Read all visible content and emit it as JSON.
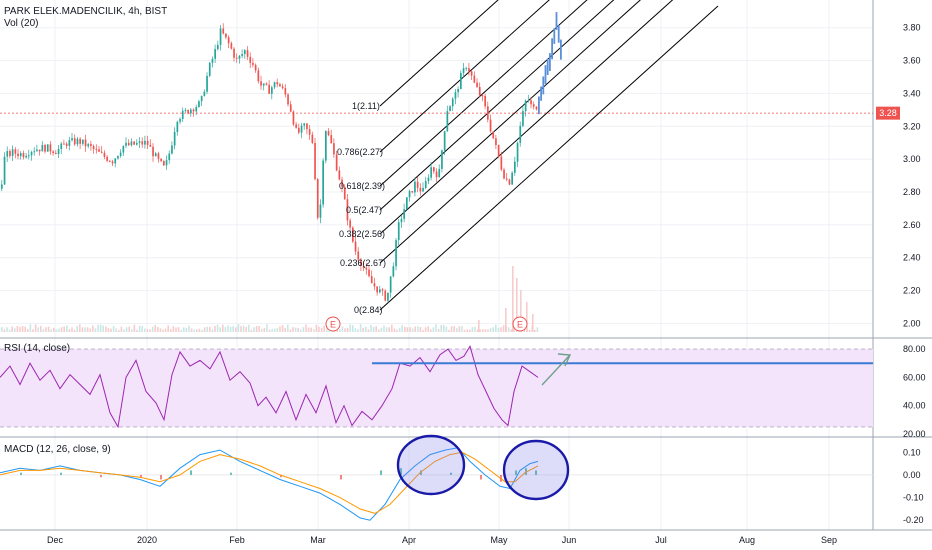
{
  "header": {
    "symbol": "PARK ELEK.MADENCILIK, 4h, BIST",
    "volume_label": "Vol (20)"
  },
  "price_pane": {
    "y_ticks": [
      "3.80",
      "3.60",
      "3.40",
      "3.20",
      "3.00",
      "2.80",
      "2.60",
      "2.40",
      "2.20",
      "2.00"
    ],
    "current_price": "3.28",
    "earnings_marker": "E"
  },
  "rsi_pane": {
    "label": "RSI (14, close)",
    "y_ticks": [
      "80.00",
      "60.00",
      "40.00",
      "20.00"
    ]
  },
  "macd_pane": {
    "label": "MACD (12, 26, close, 9)",
    "y_ticks": [
      "0.10",
      "0.00",
      "-0.10",
      "-0.20"
    ]
  },
  "time_axis": {
    "labels": [
      "Dec",
      "2020",
      "Feb",
      "Mar",
      "Apr",
      "May",
      "Jun",
      "Jul",
      "Aug",
      "Sep"
    ]
  },
  "fib_levels": [
    "1(2.11)",
    "0.786(2.27)",
    "0.618(2.39)",
    "0.5(2.47)",
    "0.382(2.56)",
    "0.236(2.67)",
    "0(2.84)"
  ],
  "colors": {
    "up": "#26a69a",
    "down": "#ef5350",
    "projection": "#5b8fd9",
    "rsi_line": "#9c27b0",
    "rsi_band": "#f3e3fb",
    "macd_line": "#2196f3",
    "signal_line": "#ff9800",
    "annotation": "#1a1aa8",
    "horizontal": "#3a7bd5",
    "arrow": "#6fa08c"
  },
  "chart_data": {
    "type": "candlestick",
    "x_labels": [
      "Dec",
      "2020",
      "Feb",
      "Mar",
      "Apr",
      "May",
      "Jun",
      "Jul",
      "Aug",
      "Sep"
    ],
    "price_range": [
      1.96,
      3.92
    ],
    "price_path": [
      [
        0,
        2.82
      ],
      [
        4,
        3.02
      ],
      [
        12,
        3.04
      ],
      [
        22,
        3.03
      ],
      [
        32,
        3.06
      ],
      [
        44,
        3.07
      ],
      [
        56,
        3.05
      ],
      [
        66,
        3.1
      ],
      [
        78,
        3.11
      ],
      [
        90,
        3.07
      ],
      [
        102,
        3.02
      ],
      [
        112,
        2.99
      ],
      [
        122,
        3.08
      ],
      [
        134,
        3.09
      ],
      [
        146,
        3.1
      ],
      [
        156,
        3.0
      ],
      [
        164,
        2.94
      ],
      [
        170,
        3.07
      ],
      [
        176,
        3.25
      ],
      [
        188,
        3.3
      ],
      [
        200,
        3.34
      ],
      [
        208,
        3.55
      ],
      [
        214,
        3.65
      ],
      [
        220,
        3.78
      ],
      [
        228,
        3.7
      ],
      [
        236,
        3.6
      ],
      [
        244,
        3.66
      ],
      [
        252,
        3.58
      ],
      [
        260,
        3.45
      ],
      [
        268,
        3.42
      ],
      [
        276,
        3.47
      ],
      [
        284,
        3.4
      ],
      [
        290,
        3.3
      ],
      [
        296,
        3.15
      ],
      [
        304,
        3.2
      ],
      [
        312,
        3.1
      ],
      [
        318,
        2.55
      ],
      [
        324,
        3.2
      ],
      [
        330,
        3.1
      ],
      [
        336,
        2.95
      ],
      [
        342,
        2.8
      ],
      [
        348,
        2.6
      ],
      [
        354,
        2.45
      ],
      [
        362,
        2.35
      ],
      [
        370,
        2.25
      ],
      [
        378,
        2.2
      ],
      [
        386,
        2.15
      ],
      [
        392,
        2.35
      ],
      [
        398,
        2.6
      ],
      [
        406,
        2.75
      ],
      [
        414,
        2.85
      ],
      [
        422,
        2.8
      ],
      [
        430,
        2.95
      ],
      [
        438,
        2.9
      ],
      [
        446,
        3.3
      ],
      [
        454,
        3.38
      ],
      [
        460,
        3.5
      ],
      [
        466,
        3.58
      ],
      [
        474,
        3.45
      ],
      [
        482,
        3.36
      ],
      [
        490,
        3.18
      ],
      [
        496,
        3.05
      ],
      [
        502,
        2.92
      ],
      [
        508,
        2.85
      ],
      [
        514,
        3.0
      ],
      [
        520,
        3.22
      ],
      [
        526,
        3.38
      ],
      [
        532,
        3.3
      ],
      [
        538,
        3.34
      ]
    ],
    "projection_path": [
      [
        538,
        3.34
      ],
      [
        544,
        3.5
      ],
      [
        550,
        3.62
      ],
      [
        556,
        3.86
      ],
      [
        560,
        3.66
      ]
    ],
    "volume_spikes": [
      [
        478,
        0.02
      ],
      [
        505,
        0.04
      ],
      [
        512,
        0.11
      ],
      [
        516,
        0.09
      ],
      [
        520,
        0.07
      ],
      [
        526,
        0.05
      ],
      [
        532,
        0.03
      ]
    ],
    "current_price": 3.28,
    "rsi": {
      "range": [
        20,
        85
      ],
      "levels": [
        80,
        60,
        40,
        20
      ],
      "overbought": 80,
      "oversold": 25,
      "horizontal_line": 70,
      "series": [
        [
          0,
          60
        ],
        [
          10,
          68
        ],
        [
          20,
          55
        ],
        [
          30,
          70
        ],
        [
          40,
          58
        ],
        [
          50,
          65
        ],
        [
          60,
          52
        ],
        [
          70,
          62
        ],
        [
          80,
          55
        ],
        [
          90,
          48
        ],
        [
          100,
          62
        ],
        [
          110,
          35
        ],
        [
          118,
          25
        ],
        [
          126,
          60
        ],
        [
          136,
          72
        ],
        [
          146,
          50
        ],
        [
          156,
          42
        ],
        [
          164,
          30
        ],
        [
          172,
          62
        ],
        [
          180,
          78
        ],
        [
          190,
          68
        ],
        [
          200,
          72
        ],
        [
          210,
          66
        ],
        [
          220,
          78
        ],
        [
          230,
          58
        ],
        [
          240,
          64
        ],
        [
          250,
          56
        ],
        [
          258,
          40
        ],
        [
          266,
          46
        ],
        [
          276,
          35
        ],
        [
          286,
          50
        ],
        [
          296,
          30
        ],
        [
          306,
          48
        ],
        [
          316,
          35
        ],
        [
          326,
          54
        ],
        [
          336,
          28
        ],
        [
          344,
          40
        ],
        [
          352,
          26
        ],
        [
          362,
          36
        ],
        [
          372,
          30
        ],
        [
          382,
          40
        ],
        [
          392,
          52
        ],
        [
          400,
          70
        ],
        [
          410,
          68
        ],
        [
          420,
          74
        ],
        [
          430,
          64
        ],
        [
          440,
          76
        ],
        [
          448,
          80
        ],
        [
          456,
          72
        ],
        [
          464,
          75
        ],
        [
          470,
          82
        ],
        [
          478,
          62
        ],
        [
          486,
          50
        ],
        [
          494,
          38
        ],
        [
          502,
          30
        ],
        [
          508,
          26
        ],
        [
          514,
          50
        ],
        [
          522,
          68
        ],
        [
          530,
          64
        ],
        [
          538,
          60
        ]
      ],
      "arrow": [
        [
          542,
          385
        ],
        [
          570,
          355
        ]
      ]
    },
    "macd": {
      "range": [
        -0.23,
        0.15
      ],
      "levels": [
        0.1,
        0.0,
        -0.1,
        -0.2
      ],
      "macd_series": [
        [
          0,
          0.01
        ],
        [
          20,
          0.03
        ],
        [
          40,
          0.02
        ],
        [
          60,
          0.04
        ],
        [
          80,
          0.02
        ],
        [
          100,
          0.01
        ],
        [
          120,
          0.0
        ],
        [
          140,
          -0.02
        ],
        [
          160,
          -0.05
        ],
        [
          180,
          0.03
        ],
        [
          200,
          0.09
        ],
        [
          220,
          0.11
        ],
        [
          240,
          0.06
        ],
        [
          260,
          0.02
        ],
        [
          280,
          -0.02
        ],
        [
          300,
          -0.05
        ],
        [
          320,
          -0.08
        ],
        [
          340,
          -0.13
        ],
        [
          360,
          -0.19
        ],
        [
          370,
          -0.2
        ],
        [
          385,
          -0.13
        ],
        [
          400,
          -0.02
        ],
        [
          415,
          0.04
        ],
        [
          430,
          0.09
        ],
        [
          445,
          0.11
        ],
        [
          458,
          0.12
        ],
        [
          470,
          0.06
        ],
        [
          485,
          0.0
        ],
        [
          500,
          -0.05
        ],
        [
          510,
          -0.06
        ],
        [
          520,
          0.02
        ],
        [
          530,
          0.05
        ],
        [
          538,
          0.06
        ]
      ],
      "signal_series": [
        [
          0,
          0.0
        ],
        [
          20,
          0.02
        ],
        [
          40,
          0.02
        ],
        [
          60,
          0.03
        ],
        [
          80,
          0.02
        ],
        [
          100,
          0.01
        ],
        [
          120,
          0.0
        ],
        [
          140,
          -0.01
        ],
        [
          160,
          -0.03
        ],
        [
          180,
          0.0
        ],
        [
          200,
          0.06
        ],
        [
          220,
          0.09
        ],
        [
          240,
          0.07
        ],
        [
          260,
          0.04
        ],
        [
          280,
          0.0
        ],
        [
          300,
          -0.03
        ],
        [
          320,
          -0.06
        ],
        [
          340,
          -0.1
        ],
        [
          360,
          -0.15
        ],
        [
          375,
          -0.17
        ],
        [
          390,
          -0.13
        ],
        [
          405,
          -0.06
        ],
        [
          420,
          0.01
        ],
        [
          435,
          0.06
        ],
        [
          450,
          0.09
        ],
        [
          462,
          0.1
        ],
        [
          475,
          0.07
        ],
        [
          490,
          0.02
        ],
        [
          505,
          -0.03
        ],
        [
          515,
          -0.03
        ],
        [
          525,
          0.01
        ],
        [
          538,
          0.04
        ]
      ],
      "histogram": [
        [
          20,
          0.01
        ],
        [
          60,
          0.01
        ],
        [
          100,
          -0.01
        ],
        [
          140,
          -0.01
        ],
        [
          160,
          -0.02
        ],
        [
          190,
          0.02
        ],
        [
          230,
          0.01
        ],
        [
          280,
          -0.01
        ],
        [
          340,
          -0.02
        ],
        [
          380,
          0.02
        ],
        [
          400,
          0.03
        ],
        [
          420,
          0.02
        ],
        [
          450,
          0.01
        ],
        [
          480,
          -0.02
        ],
        [
          500,
          -0.03
        ],
        [
          515,
          0.02
        ],
        [
          525,
          0.03
        ],
        [
          535,
          0.02
        ]
      ]
    }
  }
}
